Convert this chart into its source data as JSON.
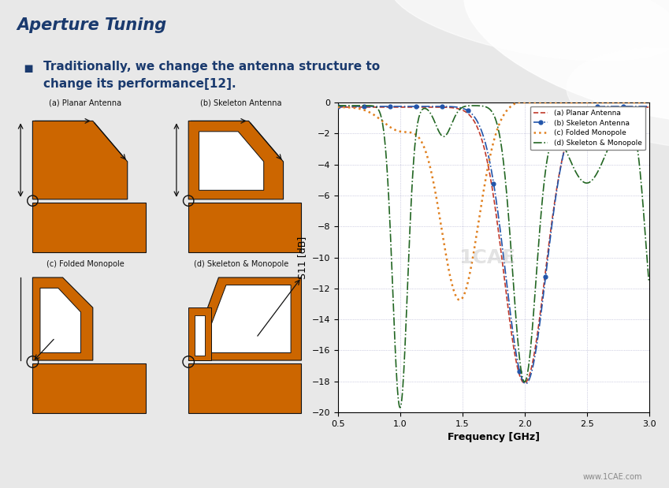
{
  "title": "Aperture Tuning",
  "title_color": "#1a3a6e",
  "slide_bg": "#e8e8e8",
  "header_line_color": "#1a3a6e",
  "bullet_text_line1": "Traditionally, we change the antenna structure to",
  "bullet_text_line2": "change its performance[12].",
  "bullet_color": "#1a3a6e",
  "antenna_fill": "#cc6600",
  "antenna_outline": "#111111",
  "labels": [
    "(a) Planar Antenna",
    "(b) Skeleton Antenna",
    "(c) Folded Monopole",
    "(d) Skeleton & Monopole"
  ],
  "freq_min": 0.5,
  "freq_max": 3.0,
  "s11_min": -20,
  "s11_max": 0,
  "legend_labels": [
    "(a) Planar Antenna",
    "(b) Skeleton Antenna",
    "(c) Folded Monopole",
    "(d) Skeleton & Monopole"
  ],
  "line_colors": [
    "#c0392b",
    "#2255aa",
    "#e08020",
    "#226622"
  ],
  "xlabel": "Frequency [GHz]",
  "ylabel": "S11 [dB]",
  "website": "www.1CAE.com"
}
